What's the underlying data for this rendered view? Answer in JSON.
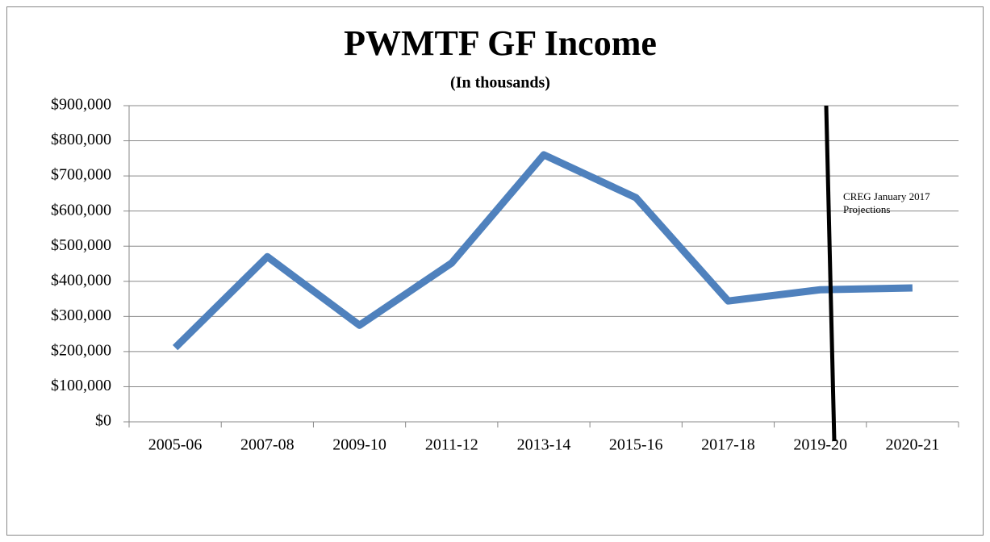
{
  "chart_data": {
    "type": "line",
    "title": "PWMTF GF Income",
    "subtitle": "(In thousands)",
    "categories": [
      "2005-06",
      "2007-08",
      "2009-10",
      "2011-12",
      "2013-14",
      "2015-16",
      "2017-18",
      "2019-20",
      "2020-21"
    ],
    "series": [
      {
        "name": "PWMTF GF Income",
        "color": "#4f81bd",
        "values": [
          211000,
          470000,
          275000,
          452000,
          760000,
          638000,
          344000,
          376000,
          381000
        ]
      }
    ],
    "ylim": [
      0,
      900000
    ],
    "yticks": [
      {
        "value": 0,
        "label": "$0"
      },
      {
        "value": 100000,
        "label": "$100,000"
      },
      {
        "value": 200000,
        "label": "$200,000"
      },
      {
        "value": 300000,
        "label": "$300,000"
      },
      {
        "value": 400000,
        "label": "$400,000"
      },
      {
        "value": 500000,
        "label": "$500,000"
      },
      {
        "value": 600000,
        "label": "$600,000"
      },
      {
        "value": 700000,
        "label": "$700,000"
      },
      {
        "value": 800000,
        "label": "$800,000"
      },
      {
        "value": 900000,
        "label": "$900,000"
      }
    ],
    "grid": true,
    "annotation": "CREG January 2017 Projections"
  }
}
